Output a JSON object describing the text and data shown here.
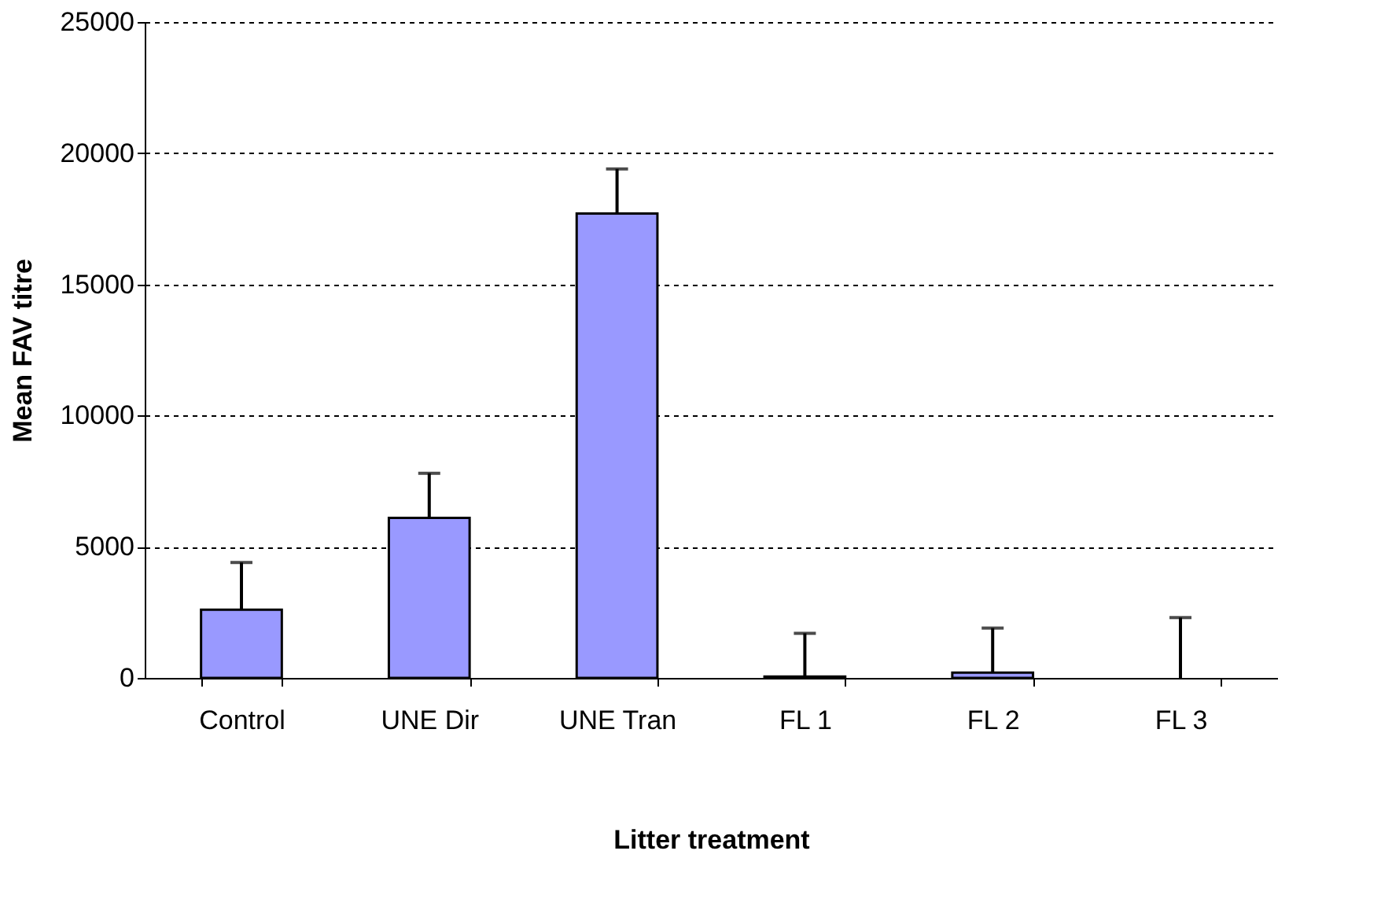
{
  "chart_data": {
    "type": "bar",
    "xlabel": "Litter treatment",
    "ylabel": "Mean FAV titre",
    "categories": [
      "Control",
      "UNE Dir",
      "UNE Tran",
      "FL 1",
      "FL 2",
      "FL 3"
    ],
    "values": [
      2600,
      6100,
      17700,
      50,
      200,
      0
    ],
    "errors": [
      [
        2600,
        4400
      ],
      [
        6100,
        7800
      ],
      [
        17700,
        19400
      ],
      [
        50,
        1700
      ],
      [
        200,
        1900
      ],
      [
        0,
        2300
      ]
    ],
    "color": "#9999ff",
    "ylim": [
      0,
      25000
    ],
    "yticks": [
      0,
      5000,
      10000,
      15000,
      20000,
      25000
    ],
    "grid": "y",
    "line_style": "dashed"
  }
}
